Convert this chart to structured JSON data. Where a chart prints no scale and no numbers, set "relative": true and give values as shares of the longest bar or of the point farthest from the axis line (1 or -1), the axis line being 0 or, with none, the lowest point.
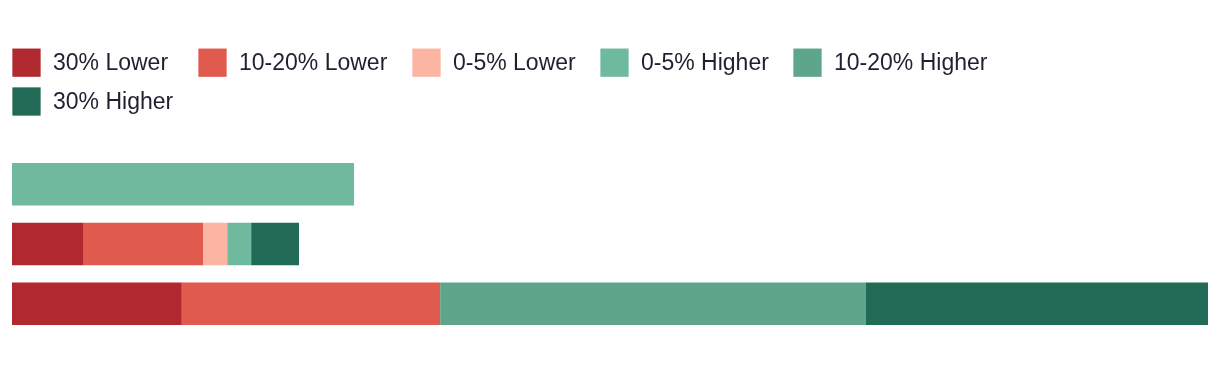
{
  "chart_data": {
    "type": "bar",
    "orientation": "horizontal",
    "stacked": true,
    "relative": true,
    "legend": "top left",
    "categories": [
      null,
      null,
      null
    ],
    "series": [
      {
        "name": "30% Lower",
        "color": "#b0292f",
        "values": [
          null,
          0.06,
          0.142
        ]
      },
      {
        "name": "10-20% Lower",
        "color": "#e05a4e",
        "values": [
          null,
          0.1,
          0.216
        ]
      },
      {
        "name": "0-5% Lower",
        "color": "#fdb5a3",
        "values": [
          null,
          0.02,
          null
        ]
      },
      {
        "name": "0-5% Higher",
        "color": "#6fba9e",
        "values": [
          0.286,
          0.02,
          null
        ]
      },
      {
        "name": "10-20% Higher",
        "color": "#5ea58c",
        "values": [
          null,
          null,
          0.356
        ]
      },
      {
        "name": "30% Higher",
        "color": "#216b56",
        "values": [
          null,
          0.04,
          0.286
        ]
      }
    ]
  }
}
